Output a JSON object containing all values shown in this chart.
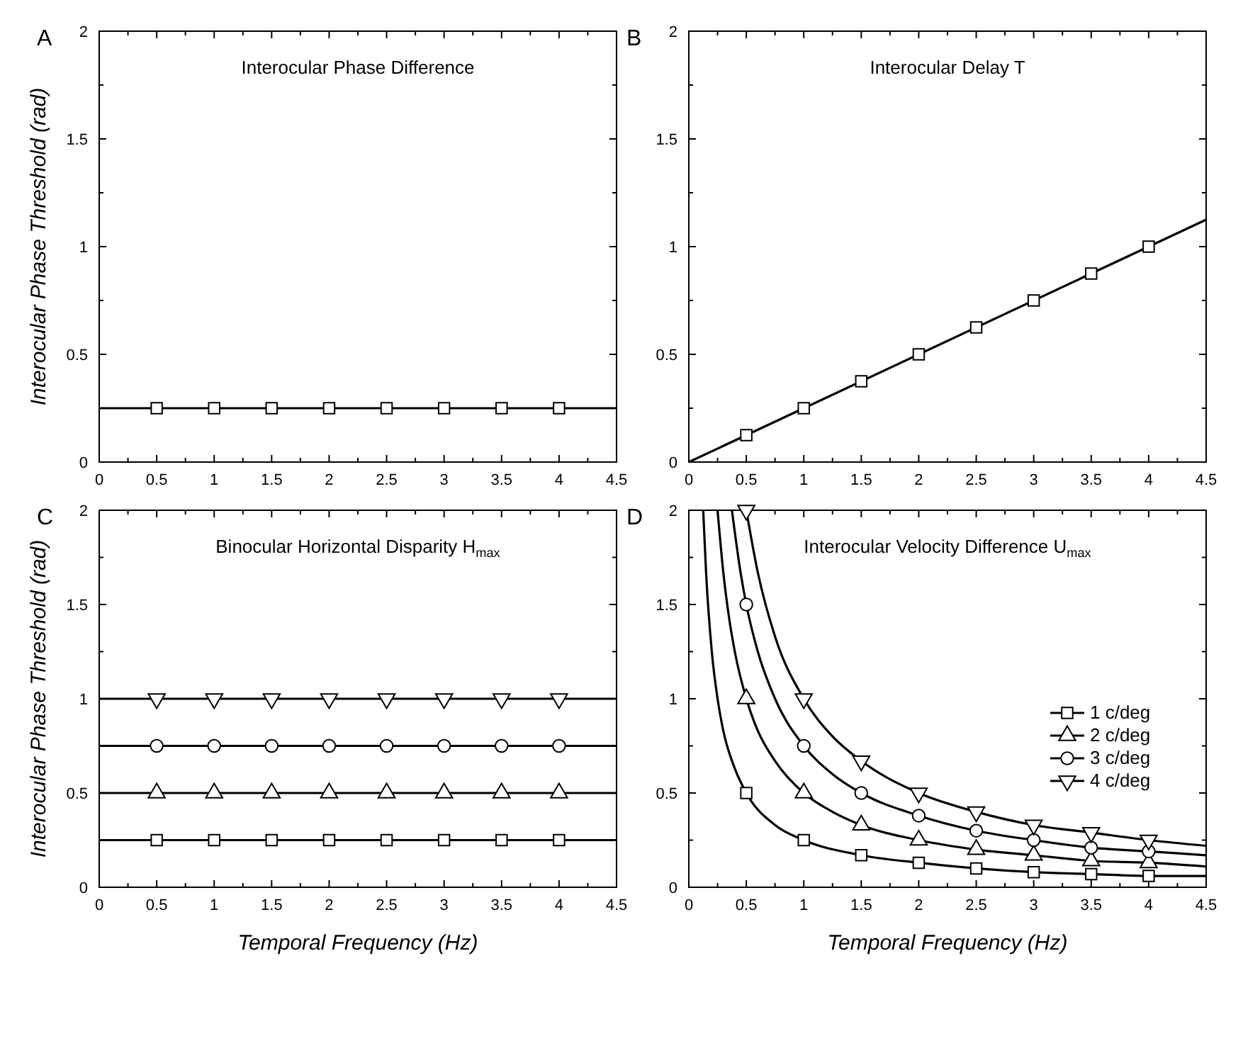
{
  "chart_data": [
    {
      "type": "line",
      "title": "Interocular Phase Difference",
      "annotations": [
        "A"
      ],
      "ylabel": "Interocular Phase Threshold (rad)",
      "xlim": [
        0,
        4.5
      ],
      "ylim": [
        0,
        2
      ],
      "xticks": [
        0,
        {
          "value": 0.25,
          "label": null
        },
        0.5,
        {
          "value": 0.75,
          "label": null
        },
        1,
        {
          "value": 1.25,
          "label": null
        },
        1.5,
        {
          "value": 1.75,
          "label": null
        },
        2,
        {
          "value": 2.25,
          "label": null
        },
        2.5,
        {
          "value": 2.75,
          "label": null
        },
        3,
        {
          "value": 3.25,
          "label": null
        },
        3.5,
        {
          "value": 3.75,
          "label": null
        },
        4,
        {
          "value": 4.25,
          "label": null
        },
        4.5
      ],
      "yticks": [
        0,
        {
          "value": 0.25,
          "label": null
        },
        0.5,
        {
          "value": 0.75,
          "label": null
        },
        1,
        {
          "value": 1.25,
          "label": null
        },
        1.5,
        {
          "value": 1.75,
          "label": null
        },
        2
      ],
      "series": [
        {
          "type": "line",
          "color": "#000000",
          "marker": "none",
          "x": [
            0,
            4.5
          ],
          "values": [
            0.25,
            0.25
          ]
        },
        {
          "type": "scatter",
          "color": "#000000",
          "marker": "square",
          "x": [
            0.5,
            1,
            1.5,
            2,
            2.5,
            3,
            3.5,
            4
          ],
          "values": [
            0.25,
            0.25,
            0.25,
            0.25,
            0.25,
            0.25,
            0.25,
            0.25
          ]
        }
      ]
    },
    {
      "type": "line",
      "title": "Interocular Delay T",
      "annotations": [
        "B"
      ],
      "xlim": [
        0,
        4.5
      ],
      "ylim": [
        0,
        2
      ],
      "xticks": [
        0,
        {
          "value": 0.25,
          "label": null
        },
        0.5,
        {
          "value": 0.75,
          "label": null
        },
        1,
        {
          "value": 1.25,
          "label": null
        },
        1.5,
        {
          "value": 1.75,
          "label": null
        },
        2,
        {
          "value": 2.25,
          "label": null
        },
        2.5,
        {
          "value": 2.75,
          "label": null
        },
        3,
        {
          "value": 3.25,
          "label": null
        },
        3.5,
        {
          "value": 3.75,
          "label": null
        },
        4,
        {
          "value": 4.25,
          "label": null
        },
        4.5
      ],
      "yticks": [
        0,
        {
          "value": 0.25,
          "label": null
        },
        0.5,
        {
          "value": 0.75,
          "label": null
        },
        1,
        {
          "value": 1.25,
          "label": null
        },
        1.5,
        {
          "value": 1.75,
          "label": null
        },
        2
      ],
      "series": [
        {
          "type": "line",
          "color": "#000000",
          "marker": "none",
          "x": [
            0,
            4.5
          ],
          "values": [
            0,
            1.125
          ]
        },
        {
          "type": "scatter",
          "color": "#000000",
          "marker": "square",
          "x": [
            0.5,
            1,
            1.5,
            2,
            2.5,
            3,
            3.5,
            4
          ],
          "values": [
            0.125,
            0.25,
            0.375,
            0.5,
            0.625,
            0.75,
            0.875,
            1
          ]
        }
      ]
    },
    {
      "type": "line",
      "title": "Binocular Horizontal Disparity H$_{max}$",
      "annotations": [
        "C"
      ],
      "xlabel": "Temporal Frequency (Hz)",
      "ylabel": "Interocular Phase Threshold (rad)",
      "xlim": [
        0,
        4.5
      ],
      "ylim": [
        0,
        2
      ],
      "xticks": [
        0,
        {
          "value": 0.25,
          "label": null
        },
        0.5,
        {
          "value": 0.75,
          "label": null
        },
        1,
        {
          "value": 1.25,
          "label": null
        },
        1.5,
        {
          "value": 1.75,
          "label": null
        },
        2,
        {
          "value": 2.25,
          "label": null
        },
        2.5,
        {
          "value": 2.75,
          "label": null
        },
        3,
        {
          "value": 3.25,
          "label": null
        },
        3.5,
        {
          "value": 3.75,
          "label": null
        },
        4,
        {
          "value": 4.25,
          "label": null
        },
        4.5
      ],
      "yticks": [
        0,
        {
          "value": 0.25,
          "label": null
        },
        0.5,
        {
          "value": 0.75,
          "label": null
        },
        1,
        {
          "value": 1.25,
          "label": null
        },
        1.5,
        {
          "value": 1.75,
          "label": null
        },
        2
      ],
      "series": [
        {
          "type": "line",
          "color": "#000000",
          "marker": "none",
          "x": [
            0,
            4.5
          ],
          "values": [
            0.25,
            0.25
          ]
        },
        {
          "type": "line",
          "color": "#000000",
          "marker": "none",
          "x": [
            0,
            4.5
          ],
          "values": [
            0.5,
            0.5
          ]
        },
        {
          "type": "line",
          "color": "#000000",
          "marker": "none",
          "x": [
            0,
            4.5
          ],
          "values": [
            0.75,
            0.75
          ]
        },
        {
          "type": "line",
          "color": "#000000",
          "marker": "none",
          "x": [
            0,
            4.5
          ],
          "values": [
            1,
            1
          ]
        },
        {
          "type": "scatter",
          "color": "#000000",
          "marker": "square",
          "x": [
            0.5,
            1,
            1.5,
            2,
            2.5,
            3,
            3.5,
            4
          ],
          "values": [
            0.25,
            0.25,
            0.25,
            0.25,
            0.25,
            0.25,
            0.25,
            0.25
          ]
        },
        {
          "type": "scatter",
          "color": "#000000",
          "marker": "triangle",
          "x": [
            0.5,
            1,
            1.5,
            2,
            2.5,
            3,
            3.5,
            4
          ],
          "values": [
            0.5,
            0.5,
            0.5,
            0.5,
            0.5,
            0.5,
            0.5,
            0.5
          ]
        },
        {
          "type": "scatter",
          "color": "#000000",
          "marker": "circle",
          "x": [
            0.5,
            1,
            1.5,
            2,
            2.5,
            3,
            3.5,
            4
          ],
          "values": [
            0.75,
            0.75,
            0.75,
            0.75,
            0.75,
            0.75,
            0.75,
            0.75
          ]
        },
        {
          "type": "scatter",
          "color": "#000000",
          "marker": "triangle-down",
          "x": [
            0.5,
            1,
            1.5,
            2,
            2.5,
            3,
            3.5,
            4
          ],
          "values": [
            1,
            1,
            1,
            1,
            1,
            1,
            1,
            1
          ]
        }
      ]
    },
    {
      "type": "line",
      "title": "Interocular Velocity Difference U$_{max}$",
      "annotations": [
        "D"
      ],
      "xlabel": "Temporal Frequency (Hz)",
      "xlim": [
        0,
        4.5
      ],
      "ylim": [
        0,
        2
      ],
      "legend": "right",
      "xticks": [
        0,
        {
          "value": 0.25,
          "label": null
        },
        0.5,
        {
          "value": 0.75,
          "label": null
        },
        1,
        {
          "value": 1.25,
          "label": null
        },
        1.5,
        {
          "value": 1.75,
          "label": null
        },
        2,
        {
          "value": 2.25,
          "label": null
        },
        2.5,
        {
          "value": 2.75,
          "label": null
        },
        3,
        {
          "value": 3.25,
          "label": null
        },
        3.5,
        {
          "value": 3.75,
          "label": null
        },
        4,
        {
          "value": 4.25,
          "label": null
        },
        4.5
      ],
      "yticks": [
        0,
        {
          "value": 0.25,
          "label": null
        },
        0.5,
        {
          "value": 0.75,
          "label": null
        },
        1,
        {
          "value": 1.25,
          "label": null
        },
        1.5,
        {
          "value": 1.75,
          "label": null
        },
        2
      ],
      "series": [
        {
          "type": "line",
          "color": "#000000",
          "marker": "none",
          "x": [
            0.125,
            0.15,
            0.2,
            0.25,
            0.3,
            0.4,
            0.5,
            0.75,
            1,
            1.5,
            2,
            2.5,
            3,
            3.5,
            4,
            4.5
          ],
          "values": [
            2,
            1.67,
            1.25,
            1,
            0.83,
            0.63,
            0.5,
            0.33,
            0.25,
            0.17,
            0.13,
            0.1,
            0.08,
            0.07,
            0.06,
            0.06
          ]
        },
        {
          "type": "line",
          "color": "#000000",
          "marker": "none",
          "x": [
            0.25,
            0.3,
            0.35,
            0.4,
            0.5,
            0.6,
            0.75,
            1,
            1.25,
            1.5,
            2,
            2.5,
            3,
            3.5,
            4,
            4.5
          ],
          "values": [
            2,
            1.67,
            1.43,
            1.25,
            1,
            0.83,
            0.67,
            0.5,
            0.4,
            0.33,
            0.25,
            0.2,
            0.17,
            0.14,
            0.13,
            0.11
          ]
        },
        {
          "type": "line",
          "color": "#000000",
          "marker": "none",
          "x": [
            0.375,
            0.45,
            0.5,
            0.6,
            0.75,
            1,
            1.25,
            1.5,
            2,
            2.5,
            3,
            3.5,
            4,
            4.5
          ],
          "values": [
            2,
            1.67,
            1.5,
            1.25,
            1,
            0.75,
            0.6,
            0.5,
            0.38,
            0.3,
            0.25,
            0.21,
            0.19,
            0.17
          ]
        },
        {
          "type": "line",
          "color": "#000000",
          "marker": "none",
          "x": [
            0.5,
            0.6,
            0.75,
            1,
            1.25,
            1.5,
            2,
            2.5,
            3,
            3.5,
            4,
            4.5
          ],
          "values": [
            2,
            1.67,
            1.33,
            1,
            0.8,
            0.67,
            0.5,
            0.4,
            0.33,
            0.29,
            0.25,
            0.22
          ]
        },
        {
          "type": "scatter",
          "name": "1 c/deg",
          "color": "#000000",
          "marker": "square",
          "x": [
            0.5,
            1,
            1.5,
            2,
            2.5,
            3,
            3.5,
            4
          ],
          "values": [
            0.5,
            0.25,
            0.17,
            0.13,
            0.1,
            0.08,
            0.07,
            0.06
          ]
        },
        {
          "type": "scatter",
          "name": "2 c/deg",
          "color": "#000000",
          "marker": "triangle",
          "x": [
            0.5,
            1,
            1.5,
            2,
            2.5,
            3,
            3.5,
            4
          ],
          "values": [
            1,
            0.5,
            0.33,
            0.25,
            0.2,
            0.17,
            0.14,
            0.13
          ]
        },
        {
          "type": "scatter",
          "name": "3 c/deg",
          "color": "#000000",
          "marker": "circle",
          "x": [
            0.5,
            1,
            1.5,
            2,
            2.5,
            3,
            3.5,
            4
          ],
          "values": [
            1.5,
            0.75,
            0.5,
            0.38,
            0.3,
            0.25,
            0.21,
            0.19
          ]
        },
        {
          "type": "scatter",
          "name": "4 c/deg",
          "color": "#000000",
          "marker": "triangle-down",
          "x": [
            0.5,
            1,
            1.5,
            2,
            2.5,
            3,
            3.5,
            4
          ],
          "values": [
            2,
            1,
            0.67,
            0.5,
            0.4,
            0.33,
            0.29,
            0.25
          ]
        }
      ]
    }
  ]
}
